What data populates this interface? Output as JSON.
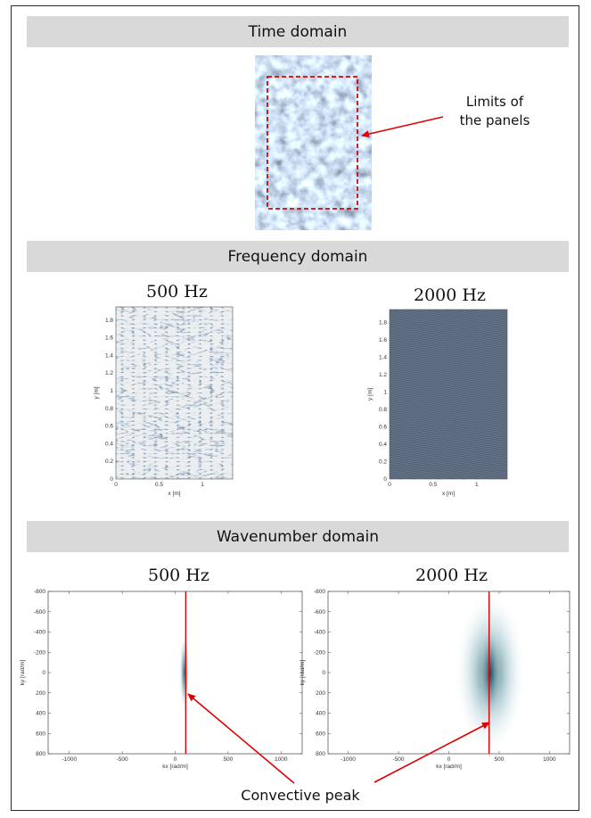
{
  "sections": {
    "time": "Time domain",
    "frequency": "Frequency domain",
    "wavenumber": "Wavenumber domain"
  },
  "annotations": {
    "limits_line1": "Limits of",
    "limits_line2": "the panels",
    "convective": "Convective peak"
  },
  "frequency_panels": [
    {
      "freq_label": "500 Hz",
      "xlabel": "x [m]",
      "ylabel": "y [m]",
      "xticks": [
        "0",
        "0.5",
        "1"
      ],
      "yticks": [
        "0",
        "0.2",
        "0.4",
        "0.6",
        "0.8",
        "1",
        "1.2",
        "1.4",
        "1.6",
        "1.8"
      ]
    },
    {
      "freq_label": "2000 Hz",
      "xlabel": "x [m]",
      "ylabel": "y [m]",
      "xticks": [
        "0",
        "0.5",
        "1"
      ],
      "yticks": [
        "0",
        "0.2",
        "0.4",
        "0.6",
        "0.8",
        "1",
        "1.2",
        "1.4",
        "1.6",
        "1.8"
      ]
    }
  ],
  "wavenumber_panels": [
    {
      "freq_label": "500 Hz",
      "xlabel": "kx [rad/m]",
      "ylabel": "ky [rad/m]",
      "xticks": [
        "-1000",
        "-500",
        "0",
        "500",
        "1000"
      ],
      "yticks": [
        "-800",
        "-600",
        "-400",
        "-200",
        "0",
        "200",
        "400",
        "600",
        "800"
      ],
      "xlim": [
        -1200,
        1200
      ],
      "ylim": [
        -800,
        800
      ],
      "convective_peak_kx": 100
    },
    {
      "freq_label": "2000 Hz",
      "xlabel": "kx [rad/m]",
      "ylabel": "ky [rad/m]",
      "xticks": [
        "-1000",
        "-500",
        "0",
        "500",
        "1000"
      ],
      "yticks": [
        "-800",
        "-600",
        "-400",
        "-200",
        "0",
        "200",
        "400",
        "600",
        "800"
      ],
      "xlim": [
        -1200,
        1200
      ],
      "ylim": [
        -800,
        800
      ],
      "convective_peak_kx": 400
    }
  ],
  "colors": {
    "band": "#d9d9d9",
    "peak_line": "#e00000",
    "arrow": "#e00000",
    "image_base": "#5a6a7e"
  }
}
